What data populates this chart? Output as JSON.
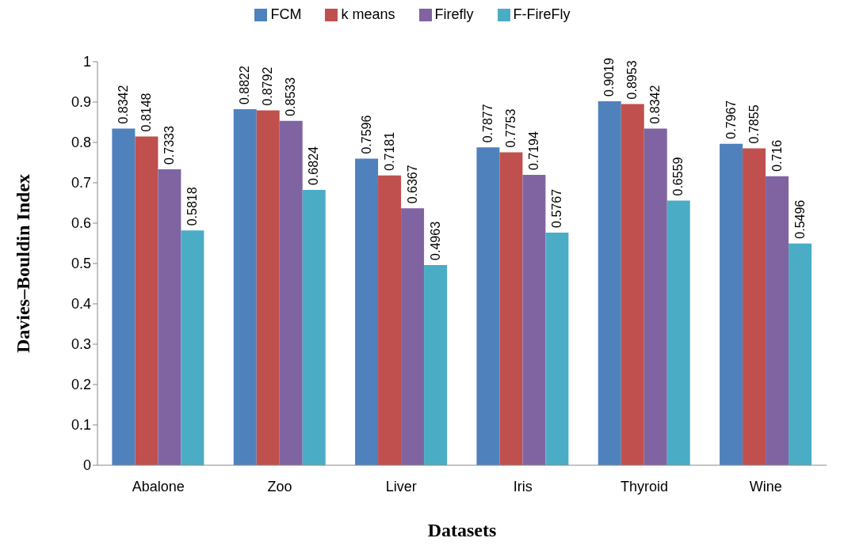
{
  "chart_data": {
    "type": "bar",
    "xlabel": "Datasets",
    "ylabel": "Davies–Bouldin  Index",
    "categories": [
      "Abalone",
      "Zoo",
      "Liver",
      "Iris",
      "Thyroid",
      "Wine"
    ],
    "series": [
      {
        "name": "FCM",
        "color": "#4f81bd",
        "values": [
          0.8342,
          0.8822,
          0.7596,
          0.7877,
          0.9019,
          0.7967
        ]
      },
      {
        "name": "k means",
        "color": "#c0504d",
        "values": [
          0.8148,
          0.8792,
          0.7181,
          0.7753,
          0.8953,
          0.7855
        ]
      },
      {
        "name": "Firefly",
        "color": "#8064a2",
        "values": [
          0.7333,
          0.8533,
          0.6367,
          0.7194,
          0.8342,
          0.716
        ]
      },
      {
        "name": "F-FireFly",
        "color": "#4bacc6",
        "values": [
          0.5818,
          0.6824,
          0.4963,
          0.5767,
          0.6559,
          0.5496
        ]
      }
    ],
    "ylim": [
      0,
      1
    ],
    "yticks": [
      0,
      0.1,
      0.2,
      0.3,
      0.4,
      0.5,
      0.6,
      0.7,
      0.8,
      0.9,
      1
    ],
    "grid": false,
    "legend": "top",
    "data_labels": true
  }
}
